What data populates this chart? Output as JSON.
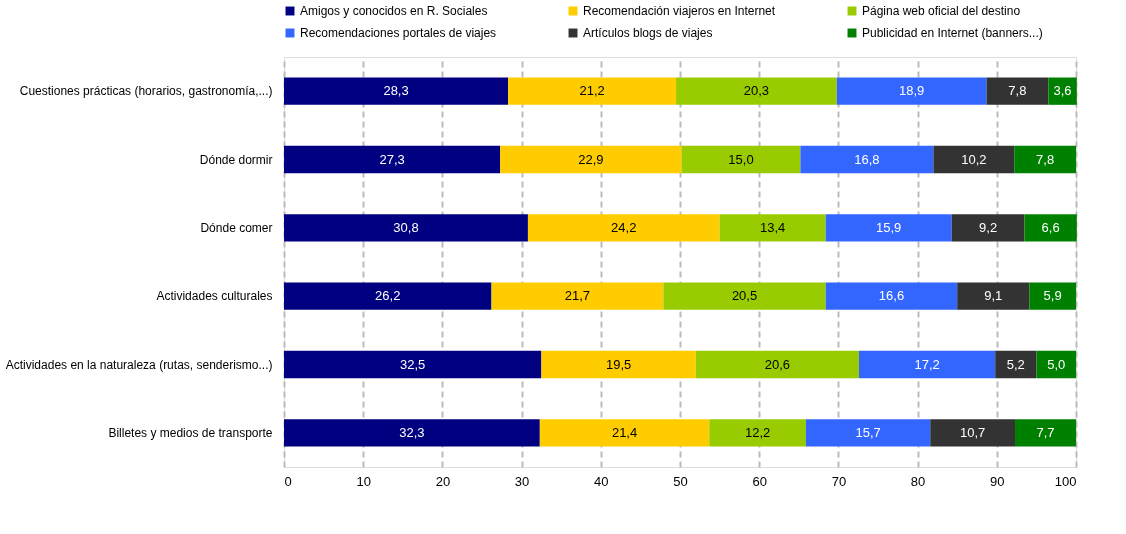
{
  "chart_data": {
    "type": "bar",
    "orientation": "horizontal",
    "stacked": true,
    "data_labels": true,
    "grid": "x",
    "legend": "top",
    "categories": [
      "Cuestiones prácticas (horarios, gastronomía,...)",
      "Dónde dormir",
      "Dónde comer",
      "Actividades culturales",
      "Actividades en la naturaleza (rutas, senderismo...)",
      "Billetes y medios de transporte"
    ],
    "xlim": [
      0,
      100
    ],
    "xticks": [
      0,
      10,
      20,
      30,
      40,
      50,
      60,
      70,
      80,
      90,
      100
    ],
    "series": [
      {
        "name": "Amigos y conocidos en R. Sociales",
        "color": "#000080",
        "values": [
          28.3,
          27.3,
          30.8,
          26.2,
          32.5,
          32.3
        ],
        "value_labels": [
          "28,3",
          "27,3",
          "30,8",
          "26,2",
          "32,5",
          "32,3"
        ]
      },
      {
        "name": "Recomendación viajeros en Internet",
        "color": "#ffcc00",
        "values": [
          21.2,
          22.9,
          24.2,
          21.7,
          19.5,
          21.4
        ],
        "value_labels": [
          "21,2",
          "22,9",
          "24,2",
          "21,7",
          "19,5",
          "21,4"
        ]
      },
      {
        "name": "Página web oficial del destino",
        "color": "#99cc00",
        "values": [
          20.3,
          15.0,
          13.4,
          20.5,
          20.6,
          12.2
        ],
        "value_labels": [
          "20,3",
          "15,0",
          "13,4",
          "20,5",
          "20,6",
          "12,2"
        ]
      },
      {
        "name": "Recomendaciones portales de viajes",
        "color": "#3366ff",
        "values": [
          18.9,
          16.8,
          15.9,
          16.6,
          17.2,
          15.7
        ],
        "value_labels": [
          "18,9",
          "16,8",
          "15,9",
          "16,6",
          "17,2",
          "15,7"
        ]
      },
      {
        "name": "Artículos blogs de viajes",
        "color": "#333333",
        "values": [
          7.8,
          10.2,
          9.2,
          9.1,
          5.2,
          10.7
        ],
        "value_labels": [
          "7,8",
          "10,2",
          "9,2",
          "9,1",
          "5,2",
          "10,7"
        ]
      },
      {
        "name": "Publicidad en Internet (banners...)",
        "color": "#008000",
        "values": [
          3.6,
          7.8,
          6.6,
          5.9,
          5.0,
          7.7
        ],
        "value_labels": [
          "3,6",
          "7,8",
          "6,6",
          "5,9",
          "5,0",
          "7,7"
        ]
      }
    ]
  }
}
